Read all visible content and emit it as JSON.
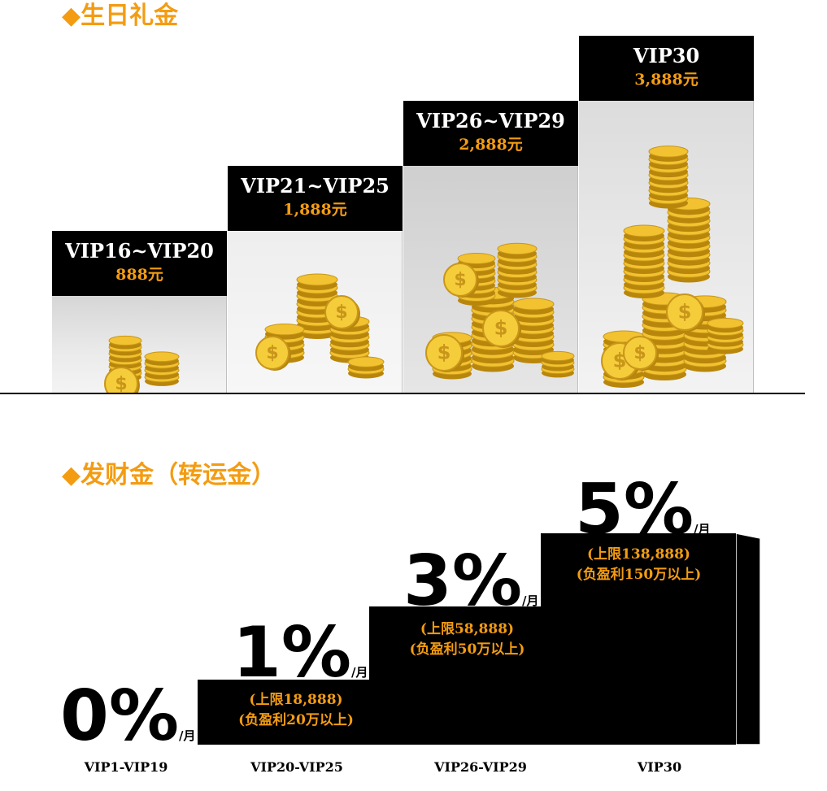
{
  "birthday": {
    "title": "◆生日礼金",
    "tiers": [
      {
        "name": "VIP16~VIP20",
        "amount": "888元"
      },
      {
        "name": "VIP21~VIP25",
        "amount": "1,888元"
      },
      {
        "name": "VIP26~VIP29",
        "amount": "2,888元"
      },
      {
        "name": "VIP30",
        "amount": "3,888元"
      }
    ]
  },
  "fortune": {
    "title": "◆发财金（转运金）",
    "unit": "/月",
    "tiers": [
      {
        "percent": "0%",
        "limit": "",
        "profit": "",
        "label": "VIP1-VIP19"
      },
      {
        "percent": "1%",
        "limit": "(上限18,888)",
        "profit": "(负盈利20万以上)",
        "label": "VIP20-VIP25"
      },
      {
        "percent": "3%",
        "limit": "(上限58,888)",
        "profit": "(负盈利50万以上)",
        "label": "VIP26-VIP29"
      },
      {
        "percent": "5%",
        "limit": "(上限138,888)",
        "profit": "(负盈利150万以上)",
        "label": "VIP30"
      }
    ]
  },
  "colors": {
    "accent": "#f39c12",
    "block": "#000000",
    "coin": "#e8b828"
  }
}
